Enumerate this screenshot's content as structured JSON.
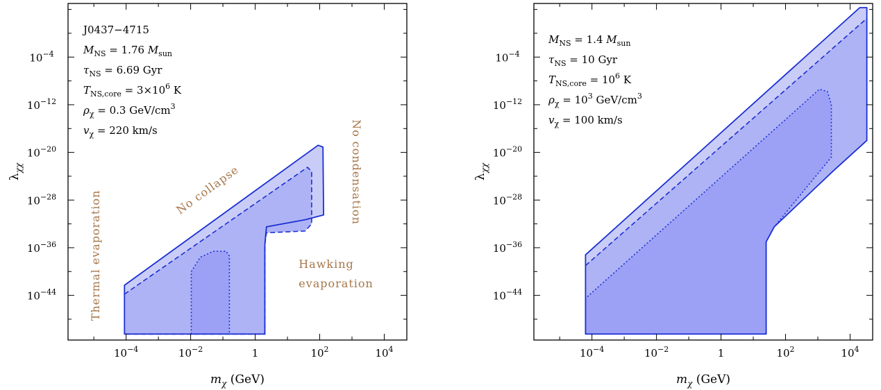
{
  "colors": {
    "outer_fill": "#c9ccf7",
    "mid_fill": "#aeb3f5",
    "inner_fill": "#9ca1f6",
    "line": "#1a2fd4",
    "annotation": "#a6764a"
  },
  "chart_data": [
    {
      "type": "area",
      "panel": "left",
      "xlabel_parts": {
        "var": "m",
        "sub": "χ",
        "unit": "(GeV)"
      },
      "ylabel_parts": {
        "var": "λ",
        "sub": "χχ"
      },
      "xscale": "log",
      "yscale": "log",
      "xlim_log10": [
        -5.8,
        4.7
      ],
      "ylim_log10": [
        -51.5,
        5
      ],
      "x_ticks": [
        {
          "label_base": "10",
          "label_exp": "−4",
          "log10": -4
        },
        {
          "label_base": "10",
          "label_exp": "−2",
          "log10": -2
        },
        {
          "label_base": "1",
          "label_exp": "",
          "log10": 0
        },
        {
          "label_base": "10",
          "label_exp": "2",
          "log10": 2
        },
        {
          "label_base": "10",
          "label_exp": "4",
          "log10": 4
        }
      ],
      "y_ticks": [
        {
          "label_base": "10",
          "label_exp": "−4",
          "log10": -4
        },
        {
          "label_base": "10",
          "label_exp": "−12",
          "log10": -12
        },
        {
          "label_base": "10",
          "label_exp": "−20",
          "log10": -20
        },
        {
          "label_base": "10",
          "label_exp": "−28",
          "log10": -28
        },
        {
          "label_base": "10",
          "label_exp": "−36",
          "log10": -36
        },
        {
          "label_base": "10",
          "label_exp": "−44",
          "log10": -44
        }
      ],
      "info_lines": [
        {
          "text": "J0437−4715"
        },
        {
          "text": "M_NS = 1.76 M_sun"
        },
        {
          "text": "τ_NS = 6.69 Gyr"
        },
        {
          "text": "T_NS,core = 3×10^6 K"
        },
        {
          "text": "ρ_χ = 0.3 GeV/cm^3"
        },
        {
          "text": "v_χ = 220 km/s"
        }
      ],
      "region_labels": [
        {
          "text": "Thermal evaporation"
        },
        {
          "text": "No collapse"
        },
        {
          "text": "No condensation"
        },
        {
          "text": "Hawking"
        },
        {
          "text": "evaporation"
        }
      ],
      "series": [
        {
          "style": "solid",
          "points": [
            [
              -4.05,
              -50.5
            ],
            [
              -4.05,
              -42.3
            ],
            [
              1.95,
              -18.8
            ],
            [
              2.1,
              -19.1
            ],
            [
              2.12,
              -30.5
            ],
            [
              1.55,
              -31.3
            ],
            [
              0.35,
              -32.5
            ],
            [
              0.3,
              -35.5
            ],
            [
              0.3,
              -50.5
            ]
          ]
        },
        {
          "style": "dashed",
          "points": [
            [
              -4.05,
              -43.8
            ],
            [
              1.62,
              -22.5
            ],
            [
              1.75,
              -23.2
            ],
            [
              1.75,
              -32
            ],
            [
              1.55,
              -33.2
            ],
            [
              0.35,
              -33.5
            ],
            [
              0.3,
              -35.5
            ],
            [
              0.3,
              -50.5
            ],
            [
              -4.05,
              -50.5
            ]
          ]
        },
        {
          "style": "dotted",
          "points": [
            [
              -1.98,
              -50.5
            ],
            [
              -1.98,
              -40
            ],
            [
              -1.7,
              -37.6
            ],
            [
              -1.3,
              -36.6
            ],
            [
              -0.9,
              -36.6
            ],
            [
              -0.8,
              -37.4
            ],
            [
              -0.8,
              -50.5
            ]
          ]
        }
      ]
    },
    {
      "type": "area",
      "panel": "right",
      "xlabel_parts": {
        "var": "m",
        "sub": "χ",
        "unit": "(GeV)"
      },
      "ylabel_parts": {
        "var": "λ",
        "sub": "χχ"
      },
      "xscale": "log",
      "yscale": "log",
      "xlim_log10": [
        -5.8,
        4.7
      ],
      "ylim_log10": [
        -51.5,
        5
      ],
      "x_ticks": [
        {
          "label_base": "10",
          "label_exp": "−4",
          "log10": -4
        },
        {
          "label_base": "10",
          "label_exp": "−2",
          "log10": -2
        },
        {
          "label_base": "1",
          "label_exp": "",
          "log10": 0
        },
        {
          "label_base": "10",
          "label_exp": "2",
          "log10": 2
        },
        {
          "label_base": "10",
          "label_exp": "4",
          "log10": 4
        }
      ],
      "y_ticks": [
        {
          "label_base": "10",
          "label_exp": "−4",
          "log10": -4
        },
        {
          "label_base": "10",
          "label_exp": "−12",
          "log10": -12
        },
        {
          "label_base": "10",
          "label_exp": "−20",
          "log10": -20
        },
        {
          "label_base": "10",
          "label_exp": "−28",
          "log10": -28
        },
        {
          "label_base": "10",
          "label_exp": "−36",
          "log10": -36
        },
        {
          "label_base": "10",
          "label_exp": "−44",
          "log10": -44
        }
      ],
      "info_lines": [
        {
          "text": "M_NS = 1.4 M_sun"
        },
        {
          "text": "τ_NS = 10 Gyr"
        },
        {
          "text": "T_NS,core = 10^6 K"
        },
        {
          "text": "ρ_χ = 10^3 GeV/cm^3"
        },
        {
          "text": "v_χ = 100 km/s"
        }
      ],
      "region_labels": [],
      "series": [
        {
          "style": "solid",
          "points": [
            [
              -4.2,
              -50.5
            ],
            [
              -4.2,
              -37.2
            ],
            [
              4.3,
              4.3
            ],
            [
              4.52,
              4.3
            ],
            [
              4.52,
              -18
            ],
            [
              3.5,
              -23
            ],
            [
              1.65,
              -32.5
            ],
            [
              1.4,
              -35
            ],
            [
              1.4,
              -50.5
            ]
          ]
        },
        {
          "style": "dashed",
          "points": [
            [
              -4.2,
              -39
            ],
            [
              4.52,
              2.5
            ]
          ]
        },
        {
          "style": "dotted",
          "points": [
            [
              -4.2,
              -50.5
            ],
            [
              -4.2,
              -44.5
            ],
            [
              3.05,
              -9.4
            ],
            [
              3.3,
              -9.8
            ],
            [
              3.42,
              -12
            ],
            [
              3.42,
              -20.8
            ],
            [
              1.65,
              -32.5
            ],
            [
              1.4,
              -35
            ],
            [
              1.4,
              -50.5
            ]
          ]
        }
      ]
    }
  ]
}
